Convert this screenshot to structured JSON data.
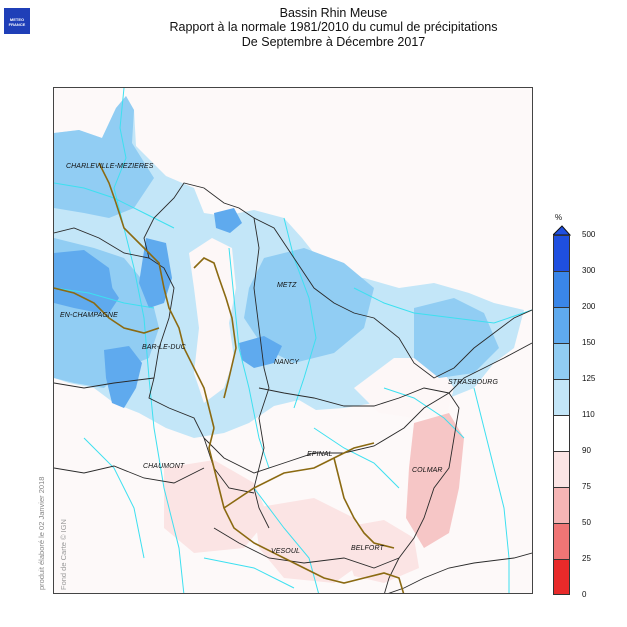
{
  "logo": {
    "line1": "METEO",
    "line2": "FRANCE",
    "color": "#1f3fb8"
  },
  "title": {
    "line1": "Bassin Rhin Meuse",
    "line2": "Rapport à la normale 1981/2010 du cumul de précipitations",
    "line3": "De Septembre à Décembre 2017"
  },
  "places": [
    {
      "name": "CHARLEVILLE-MEZIERES"
    },
    {
      "name": "METZ"
    },
    {
      "name": "EN-CHAMPAGNE"
    },
    {
      "name": "BAR-LE-DUC"
    },
    {
      "name": "NANCY"
    },
    {
      "name": "STRASBOURG"
    },
    {
      "name": "CHAUMONT"
    },
    {
      "name": "EPINAL"
    },
    {
      "name": "COLMAR"
    },
    {
      "name": "VESOUL"
    },
    {
      "name": "BELFORT"
    }
  ],
  "side_text": {
    "produced": "produit élaboré le 02 Janvier 2018",
    "background": "Fond de Carte © IGN"
  },
  "legend": {
    "unit": "%",
    "labels": [
      "500",
      "300",
      "200",
      "150",
      "125",
      "110",
      "90",
      "75",
      "50",
      "25",
      "0"
    ],
    "classes": [
      {
        "range": "300-500",
        "color": "#1f4fe0"
      },
      {
        "range": "200-300",
        "color": "#3a86e8"
      },
      {
        "range": "150-200",
        "color": "#5faaee"
      },
      {
        "range": "125-150",
        "color": "#91cdf3"
      },
      {
        "range": "110-125",
        "color": "#c3e6f8"
      },
      {
        "range": "90-110",
        "color": "#ffffff"
      },
      {
        "range": "75-90",
        "color": "#fbe4e4"
      },
      {
        "range": "50-75",
        "color": "#f6b5b5"
      },
      {
        "range": "25-50",
        "color": "#f07575"
      },
      {
        "range": "0-25",
        "color": "#e82a2a"
      }
    ]
  },
  "colors": {
    "river": "#3de0f0",
    "border": "#2a2a2a",
    "basin": "#8b6a12",
    "wet_light": "#c3e6f8",
    "wet_mid": "#91cdf3",
    "wet_strong": "#5faaee",
    "dry_light": "#fbe4e4",
    "dry_mid": "#f6c6c6"
  }
}
